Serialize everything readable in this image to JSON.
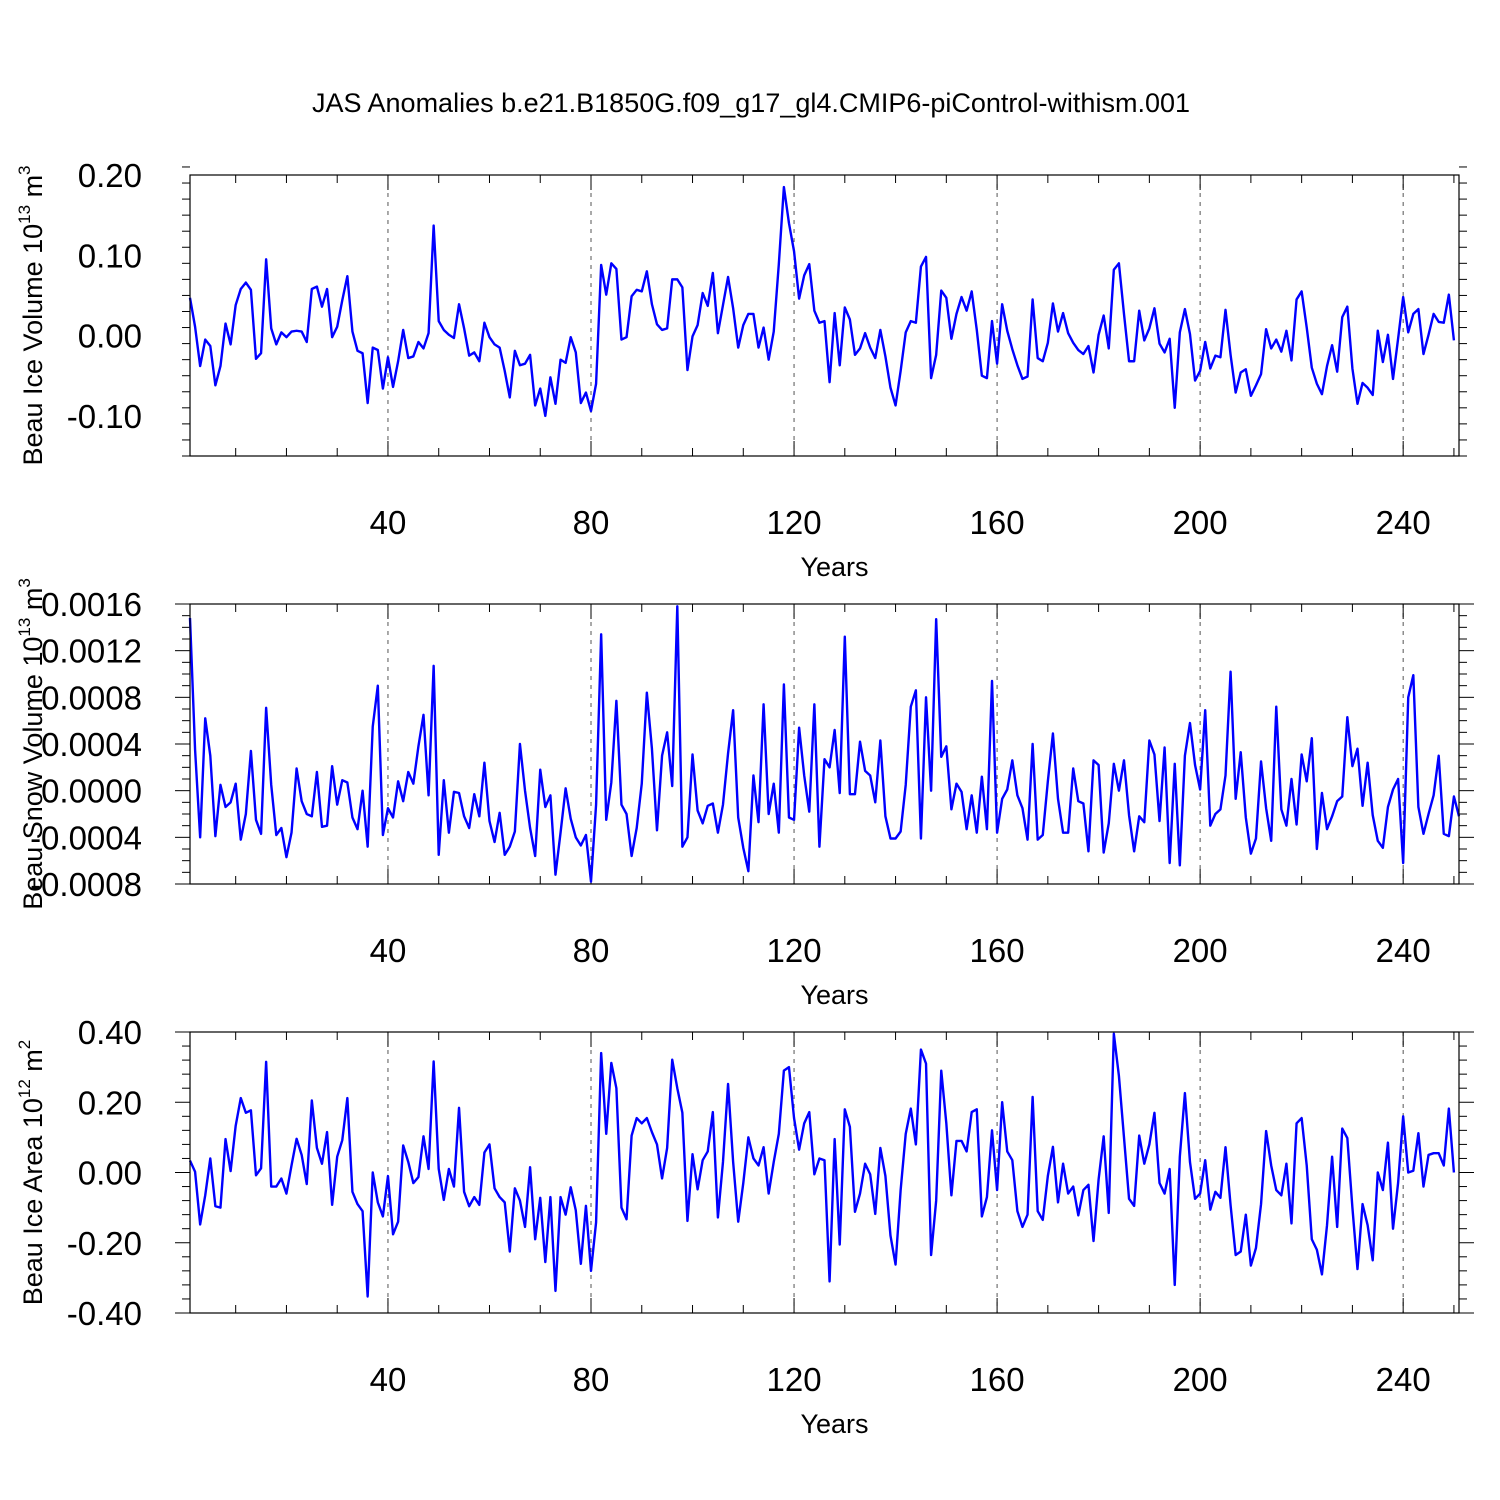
{
  "title": "JAS Anomalies b.e21.B1850G.f09_g17_gl4.CMIP6-piControl-withism.001",
  "colors": {
    "line": "#0000ff",
    "axis": "#000000",
    "grid": "#555555"
  },
  "chart_data": [
    {
      "type": "line",
      "xlabel": "Years",
      "ylabel": {
        "pre": "Beau Ice Volume 10",
        "sup": "13",
        "post": " m",
        "sup2": "3"
      },
      "xlim": [
        1,
        251
      ],
      "ylim": [
        -0.15,
        0.2
      ],
      "xticks": [
        40,
        80,
        120,
        160,
        200,
        240
      ],
      "xtick_labels": [
        "40",
        "80",
        "120",
        "160",
        "200",
        "240"
      ],
      "yticks": [
        -0.1,
        0,
        0.1,
        0.2
      ],
      "ytick_labels": [
        "-0.10",
        "0.00",
        "0.10",
        "0.20"
      ],
      "yminor": 0.02,
      "series": [
        {
          "name": "Beau Ice Volume",
          "x_start": 1,
          "values": [
            0.047,
            0.011,
            -0.038,
            -0.005,
            -0.013,
            -0.062,
            -0.038,
            0.015,
            -0.011,
            0.038,
            0.058,
            0.066,
            0.057,
            -0.029,
            -0.022,
            0.095,
            0.009,
            -0.011,
            0.004,
            -0.002,
            0.005,
            0.006,
            0.005,
            -0.008,
            0.058,
            0.061,
            0.036,
            0.058,
            -0.002,
            0.011,
            0.044,
            0.074,
            0.005,
            -0.019,
            -0.022,
            -0.084,
            -0.015,
            -0.018,
            -0.066,
            -0.027,
            -0.064,
            -0.032,
            0.007,
            -0.028,
            -0.026,
            -0.008,
            -0.016,
            0.003,
            0.137,
            0.018,
            0.007,
            0.001,
            -0.003,
            0.039,
            0.009,
            -0.025,
            -0.021,
            -0.032,
            0.016,
            -0.002,
            -0.011,
            -0.015,
            -0.044,
            -0.077,
            -0.019,
            -0.037,
            -0.035,
            -0.024,
            -0.087,
            -0.066,
            -0.1,
            -0.052,
            -0.085,
            -0.03,
            -0.034,
            -0.002,
            -0.021,
            -0.084,
            -0.071,
            -0.094,
            -0.06,
            0.088,
            0.051,
            0.09,
            0.083,
            -0.005,
            -0.002,
            0.049,
            0.057,
            0.055,
            0.08,
            0.039,
            0.014,
            0.007,
            0.009,
            0.07,
            0.07,
            0.06,
            -0.043,
            -0.001,
            0.013,
            0.053,
            0.037,
            0.078,
            0.003,
            0.038,
            0.073,
            0.034,
            -0.015,
            0.013,
            0.027,
            0.027,
            -0.015,
            0.01,
            -0.03,
            0.005,
            0.089,
            0.185,
            0.14,
            0.105,
            0.046,
            0.075,
            0.089,
            0.031,
            0.016,
            0.018,
            -0.058,
            0.028,
            -0.037,
            0.035,
            0.02,
            -0.024,
            -0.016,
            0.003,
            -0.015,
            -0.028,
            0.007,
            -0.026,
            -0.065,
            -0.087,
            -0.044,
            0.004,
            0.018,
            0.016,
            0.086,
            0.098,
            -0.053,
            -0.024,
            0.056,
            0.047,
            -0.004,
            0.027,
            0.048,
            0.031,
            0.055,
            0.007,
            -0.05,
            -0.053,
            0.018,
            -0.035,
            0.039,
            0.006,
            -0.017,
            -0.037,
            -0.054,
            -0.051,
            0.045,
            -0.028,
            -0.032,
            -0.009,
            0.04,
            0.005,
            0.028,
            0.003,
            -0.009,
            -0.018,
            -0.023,
            -0.013,
            -0.046,
            0.001,
            0.025,
            -0.016,
            0.082,
            0.09,
            0.027,
            -0.032,
            -0.032,
            0.031,
            -0.006,
            0.009,
            0.034,
            -0.01,
            -0.021,
            -0.004,
            -0.09,
            0.004,
            0.033,
            0.002,
            -0.056,
            -0.044,
            -0.008,
            -0.041,
            -0.025,
            -0.027,
            0.032,
            -0.024,
            -0.071,
            -0.046,
            -0.042,
            -0.075,
            -0.062,
            -0.048,
            0.008,
            -0.016,
            -0.005,
            -0.02,
            0.006,
            -0.031,
            0.045,
            0.055,
            0.01,
            -0.04,
            -0.06,
            -0.073,
            -0.038,
            -0.012,
            -0.045,
            0.023,
            0.036,
            -0.041,
            -0.085,
            -0.059,
            -0.065,
            -0.074,
            0.006,
            -0.033,
            0.001,
            -0.054,
            -0.004,
            0.048,
            0.004,
            0.027,
            0.033,
            -0.023,
            0.001,
            0.027,
            0.017,
            0.016,
            0.051,
            -0.006
          ]
        }
      ]
    },
    {
      "type": "line",
      "xlabel": "Years",
      "ylabel": {
        "pre": "Beau Snow Volume 10",
        "sup": "13",
        "post": " m",
        "sup2": "3"
      },
      "xlim": [
        1,
        251
      ],
      "ylim": [
        -0.0008,
        0.0016
      ],
      "xticks": [
        40,
        80,
        120,
        160,
        200,
        240
      ],
      "xtick_labels": [
        "40",
        "80",
        "120",
        "160",
        "200",
        "240"
      ],
      "yticks": [
        -0.0008,
        -0.0004,
        0,
        0.0004,
        0.0008,
        0.0012,
        0.0016
      ],
      "ytick_labels": [
        "-0.0008",
        "-0.0004",
        "0.0000",
        "0.0004",
        "0.0008",
        "0.0012",
        "0.0016"
      ],
      "yminor": 0.0001,
      "series": [
        {
          "name": "Beau Snow Volume",
          "x_start": 1,
          "values": [
            0.00148,
            0.00035,
            -0.0004,
            0.00062,
            0.0003,
            -0.00039,
            5e-05,
            -0.00014,
            -0.0001,
            6e-05,
            -0.00042,
            -0.0002,
            0.00034,
            -0.00025,
            -0.00037,
            0.00071,
            5e-05,
            -0.00038,
            -0.00032,
            -0.00057,
            -0.00036,
            0.00019,
            -9e-05,
            -0.0002,
            -0.00022,
            0.00016,
            -0.00031,
            -0.0003,
            0.00021,
            -0.00012,
            9e-05,
            7e-05,
            -0.00023,
            -0.00033,
            0.0,
            -0.00048,
            0.00055,
            0.0009,
            -0.00038,
            -0.00015,
            -0.00023,
            8e-05,
            -9e-05,
            0.00016,
            6e-05,
            0.00038,
            0.00065,
            -4e-05,
            0.00107,
            -0.00055,
            9e-05,
            -0.00036,
            -1e-05,
            -2e-05,
            -0.00022,
            -0.00032,
            -3e-05,
            -0.00022,
            0.00024,
            -0.00026,
            -0.00044,
            -0.00019,
            -0.00055,
            -0.00048,
            -0.00035,
            0.0004,
            0.0,
            -0.00032,
            -0.00056,
            0.00018,
            -0.00014,
            -4e-05,
            -0.00072,
            -0.00036,
            2e-05,
            -0.00024,
            -0.0004,
            -0.00047,
            -0.00038,
            -0.00078,
            -0.00012,
            0.00134,
            -0.00025,
            7e-05,
            0.00077,
            -0.00012,
            -0.0002,
            -0.00056,
            -0.00032,
            6e-05,
            0.00084,
            0.00036,
            -0.00034,
            0.0003,
            0.0005,
            4e-05,
            0.00158,
            -0.00048,
            -0.0004,
            0.00031,
            -0.00017,
            -0.00028,
            -0.00013,
            -0.00011,
            -0.00036,
            -0.00012,
            0.00032,
            0.00069,
            -0.00023,
            -0.00049,
            -0.00069,
            0.00013,
            -0.00027,
            0.00074,
            -0.0002,
            6e-05,
            -0.00036,
            0.00091,
            -0.00023,
            -0.00025,
            0.00054,
            0.00013,
            -0.00018,
            0.00074,
            -0.00048,
            0.00027,
            0.0002,
            0.00052,
            -2e-05,
            0.00132,
            -3e-05,
            -3e-05,
            0.00042,
            0.00017,
            0.00013,
            -0.0001,
            0.00043,
            -0.00022,
            -0.00041,
            -0.00041,
            -0.00035,
            5e-05,
            0.00072,
            0.00086,
            -0.00041,
            0.0008,
            0.0,
            0.00147,
            0.00029,
            0.00038,
            -0.00016,
            6e-05,
            -1e-05,
            -0.00033,
            -4e-05,
            -0.00036,
            0.00012,
            -0.00033,
            0.00094,
            -0.00036,
            -7e-05,
            1e-05,
            0.00026,
            -4e-05,
            -0.00015,
            -0.00042,
            0.0004,
            -0.00042,
            -0.00038,
            8e-05,
            0.00049,
            -7e-05,
            -0.00036,
            -0.00036,
            0.00019,
            -9e-05,
            -0.00011,
            -0.00052,
            0.00026,
            0.00022,
            -0.00053,
            -0.00028,
            0.00023,
            0.0,
            0.00026,
            -0.00021,
            -0.00052,
            -0.00022,
            -0.00027,
            0.00043,
            0.00031,
            -0.00026,
            0.00037,
            -0.00062,
            0.00023,
            -0.00064,
            0.0003,
            0.00058,
            0.00022,
            1e-05,
            0.00069,
            -0.0003,
            -0.0002,
            -0.00016,
            0.00013,
            0.00102,
            -7e-05,
            0.00033,
            -0.00023,
            -0.00054,
            -0.00041,
            0.00025,
            -0.00015,
            -0.00043,
            0.00072,
            -0.00016,
            -0.0003,
            0.0001,
            -0.00029,
            0.00031,
            8e-05,
            0.00045,
            -0.0005,
            -2e-05,
            -0.00033,
            -0.00022,
            -9e-05,
            -5e-05,
            0.00063,
            0.00021,
            0.00036,
            -0.00013,
            0.00024,
            -0.00021,
            -0.00043,
            -0.00049,
            -0.00014,
            1e-05,
            0.0001,
            -0.00062,
            0.0008,
            0.00099,
            -0.00014,
            -0.00037,
            -0.0002,
            -4e-05,
            0.0003,
            -0.00037,
            -0.00039,
            -5e-05,
            -0.00022
          ]
        }
      ]
    },
    {
      "type": "line",
      "xlabel": "Years",
      "ylabel": {
        "pre": "Beau Ice Area 10",
        "sup": "12",
        "post": " m",
        "sup2": "2"
      },
      "xlim": [
        1,
        251
      ],
      "ylim": [
        -0.4,
        0.4
      ],
      "xticks": [
        40,
        80,
        120,
        160,
        200,
        240
      ],
      "xtick_labels": [
        "40",
        "80",
        "120",
        "160",
        "200",
        "240"
      ],
      "yticks": [
        -0.4,
        -0.2,
        0,
        0.2,
        0.4
      ],
      "ytick_labels": [
        "-0.40",
        "-0.20",
        "0.00",
        "0.20",
        "0.40"
      ],
      "yminor": 0.04,
      "series": [
        {
          "name": "Beau Ice Area",
          "x_start": 1,
          "values": [
            0.034,
            0.002,
            -0.148,
            -0.065,
            0.04,
            -0.096,
            -0.1,
            0.095,
            0.004,
            0.133,
            0.212,
            0.17,
            0.177,
            -0.008,
            0.012,
            0.315,
            -0.04,
            -0.04,
            -0.017,
            -0.06,
            0.02,
            0.096,
            0.05,
            -0.033,
            0.205,
            0.07,
            0.025,
            0.115,
            -0.092,
            0.045,
            0.092,
            0.212,
            -0.055,
            -0.09,
            -0.11,
            -0.353,
            0.0,
            -0.085,
            -0.125,
            -0.01,
            -0.176,
            -0.14,
            0.077,
            0.03,
            -0.03,
            -0.013,
            0.103,
            0.01,
            0.316,
            0.01,
            -0.078,
            0.01,
            -0.04,
            0.184,
            -0.055,
            -0.096,
            -0.07,
            -0.092,
            0.057,
            0.08,
            -0.045,
            -0.07,
            -0.085,
            -0.225,
            -0.045,
            -0.08,
            -0.155,
            0.015,
            -0.19,
            -0.072,
            -0.255,
            -0.07,
            -0.337,
            -0.07,
            -0.12,
            -0.042,
            -0.108,
            -0.26,
            -0.095,
            -0.28,
            -0.142,
            0.34,
            0.11,
            0.312,
            0.24,
            -0.1,
            -0.133,
            0.105,
            0.155,
            0.14,
            0.155,
            0.115,
            0.08,
            -0.017,
            0.07,
            0.321,
            0.24,
            0.17,
            -0.138,
            0.052,
            -0.048,
            0.035,
            0.06,
            0.172,
            -0.128,
            0.03,
            0.252,
            0.03,
            -0.14,
            -0.03,
            0.1,
            0.04,
            0.02,
            0.072,
            -0.06,
            0.03,
            0.11,
            0.29,
            0.3,
            0.155,
            0.065,
            0.14,
            0.172,
            -0.005,
            0.04,
            0.035,
            -0.31,
            0.095,
            -0.205,
            0.18,
            0.13,
            -0.112,
            -0.06,
            0.025,
            -0.005,
            -0.118,
            0.07,
            -0.01,
            -0.18,
            -0.262,
            -0.05,
            0.11,
            0.182,
            0.08,
            0.35,
            0.31,
            -0.235,
            -0.08,
            0.29,
            0.14,
            -0.065,
            0.09,
            0.09,
            0.06,
            0.172,
            0.18,
            -0.125,
            -0.07,
            0.12,
            -0.05,
            0.2,
            0.06,
            0.035,
            -0.11,
            -0.155,
            -0.12,
            0.215,
            -0.11,
            -0.135,
            -0.01,
            0.073,
            -0.085,
            0.025,
            -0.06,
            -0.04,
            -0.122,
            -0.05,
            -0.035,
            -0.195,
            -0.02,
            0.103,
            -0.115,
            0.395,
            0.275,
            0.1,
            -0.075,
            -0.095,
            0.105,
            0.025,
            0.08,
            0.17,
            -0.03,
            -0.06,
            0.01,
            -0.32,
            0.045,
            0.226,
            0.03,
            -0.075,
            -0.06,
            0.035,
            -0.106,
            -0.055,
            -0.072,
            0.072,
            -0.093,
            -0.235,
            -0.225,
            -0.12,
            -0.265,
            -0.215,
            -0.09,
            0.118,
            0.02,
            -0.05,
            -0.065,
            0.025,
            -0.145,
            0.14,
            0.155,
            0.02,
            -0.19,
            -0.22,
            -0.29,
            -0.15,
            0.045,
            -0.155,
            0.125,
            0.098,
            -0.1,
            -0.275,
            -0.09,
            -0.15,
            -0.25,
            0.0,
            -0.05,
            0.085,
            -0.16,
            -0.03,
            0.16,
            0.0,
            0.005,
            0.112,
            -0.04,
            0.05,
            0.055,
            0.055,
            0.02,
            0.182,
            0.0
          ]
        }
      ]
    }
  ]
}
